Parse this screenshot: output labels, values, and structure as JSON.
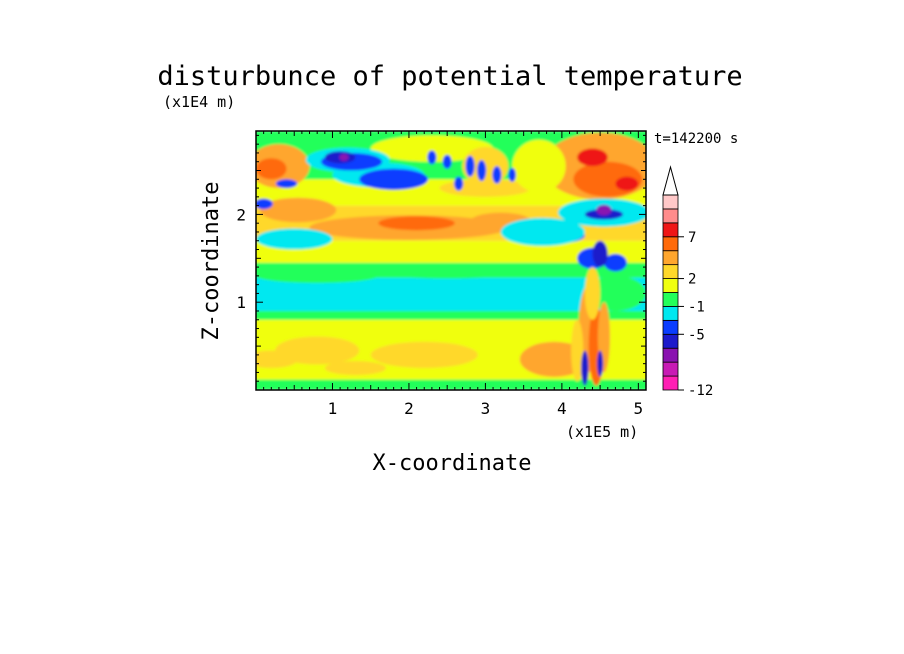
{
  "chart_data": {
    "type": "heatmap",
    "title": "disturbunce of potential temperature",
    "time_label": "t=142200 s",
    "xlabel": "X-coordinate",
    "ylabel": "Z-coordinate",
    "x_scale_label": "(x1E5 m)",
    "y_scale_label": "(x1E4 m)",
    "xlim": [
      0,
      5.1
    ],
    "ylim": [
      0,
      2.95
    ],
    "x_ticks": [
      {
        "value": 1,
        "label": "1"
      },
      {
        "value": 2,
        "label": "2"
      },
      {
        "value": 3,
        "label": "3"
      },
      {
        "value": 4,
        "label": "4"
      },
      {
        "value": 5,
        "label": "5"
      }
    ],
    "y_ticks": [
      {
        "value": 1,
        "label": "1"
      },
      {
        "value": 2,
        "label": "2"
      }
    ],
    "colorbar": {
      "extend": "max",
      "levels": [
        {
          "color": "#ff1fb4",
          "label": ""
        },
        {
          "color": "#c81ab4",
          "label": ""
        },
        {
          "color": "#8a12b0",
          "label": ""
        },
        {
          "color": "#1d1acb",
          "label": ""
        },
        {
          "color": "#0a3dff",
          "label": ""
        },
        {
          "color": "#00e8f0",
          "label": ""
        },
        {
          "color": "#24ff5a",
          "label": ""
        },
        {
          "color": "#f0ff10",
          "label": ""
        },
        {
          "color": "#ffd82a",
          "label": ""
        },
        {
          "color": "#ffa62e",
          "label": ""
        },
        {
          "color": "#ff6a0a",
          "label": ""
        },
        {
          "color": "#ef1616",
          "label": ""
        },
        {
          "color": "#ff8c8c",
          "label": ""
        },
        {
          "color": "#ffc8c8",
          "label": ""
        }
      ],
      "labels": [
        "-12",
        "-5",
        "-1",
        "2",
        "7"
      ]
    },
    "regions": [
      {
        "z": [
          0.0,
          0.12
        ],
        "color": "#24ff5a",
        "name": "green strip at bottom"
      },
      {
        "z": [
          0.12,
          0.8
        ],
        "color": "#f0ff10",
        "name": "yellow lower layer"
      },
      {
        "z": [
          0.8,
          0.9
        ],
        "color": "#24ff5a",
        "name": "green"
      },
      {
        "z": [
          0.9,
          1.28
        ],
        "color": "#00e8f0",
        "name": "cyan cold layer"
      },
      {
        "z": [
          1.28,
          1.45
        ],
        "color": "#24ff5a",
        "name": "green"
      },
      {
        "z": [
          1.45,
          1.7
        ],
        "color": "#f0ff10",
        "name": "yellow"
      },
      {
        "z": [
          1.7,
          2.1
        ],
        "color": "#ffd82a",
        "name": "orange-yellow warm band"
      },
      {
        "z": [
          2.1,
          2.4
        ],
        "color": "#f0ff10",
        "name": "yellow"
      },
      {
        "z": [
          2.4,
          2.95
        ],
        "color": "#24ff5a",
        "name": "upper mixed"
      }
    ]
  }
}
